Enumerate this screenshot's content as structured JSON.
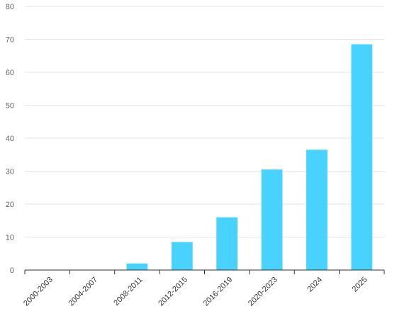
{
  "chart_data": {
    "type": "bar",
    "title": "",
    "xlabel": "",
    "ylabel": "",
    "categories": [
      "2000-2003",
      "2004-2007",
      "2008-2011",
      "2012-2015",
      "2016-2019",
      "2020-2023",
      "2024",
      "2025"
    ],
    "values": [
      0,
      0,
      2,
      8.5,
      16,
      30.5,
      36.5,
      68.5
    ],
    "ylim": [
      0,
      80
    ],
    "yticks": [
      "0",
      "10",
      "20",
      "30",
      "40",
      "50",
      "60",
      "70",
      "80"
    ],
    "grid": true,
    "legend": "none",
    "colors": {
      "bar": "#48d2ff",
      "grid": "#e6e6e6",
      "axis": "#333333"
    }
  }
}
